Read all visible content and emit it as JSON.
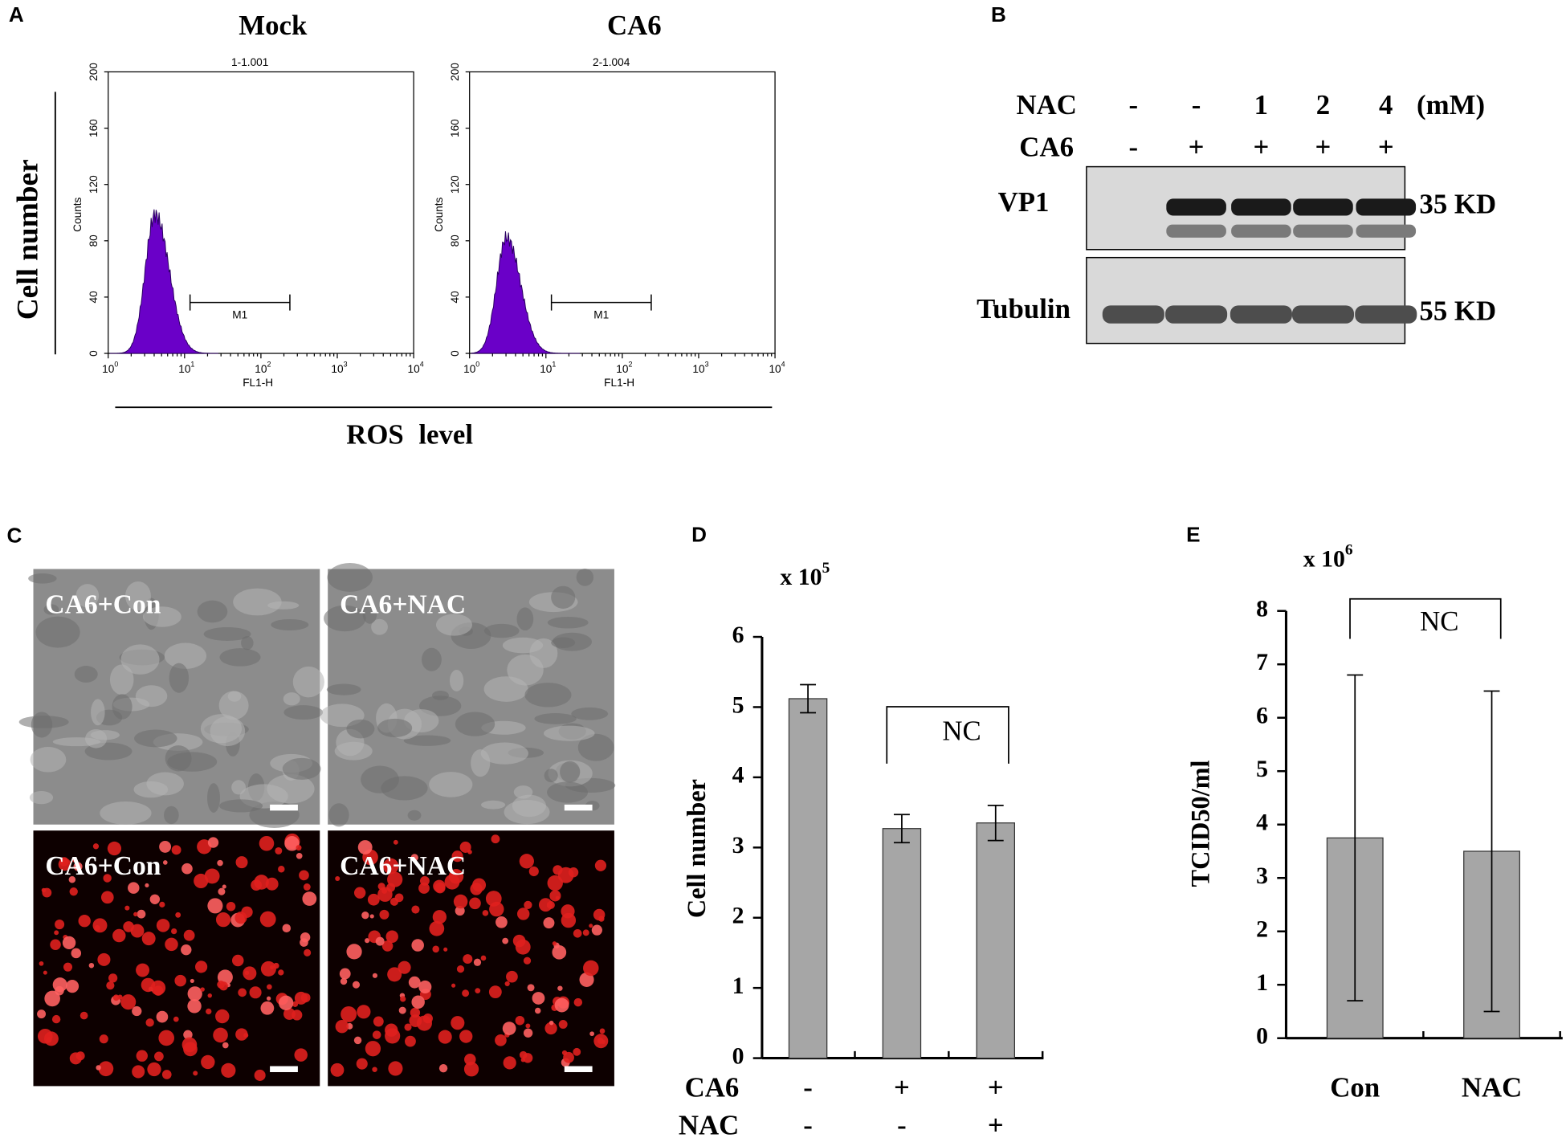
{
  "panel_a": {
    "label": "A",
    "ylabel": "Cell number",
    "xlabel": "ROS level",
    "plots": [
      {
        "title": "Mock",
        "subtitle": "1-1.001",
        "ylabel": "Counts",
        "xlabel": "FL1-H",
        "marker": "M1",
        "ylim": [
          0,
          200
        ],
        "yticks": [
          0,
          40,
          80,
          120,
          160,
          200
        ],
        "xticks": [
          {
            "base": "10",
            "exp": "0"
          },
          {
            "base": "10",
            "exp": "1"
          },
          {
            "base": "10",
            "exp": "2"
          },
          {
            "base": "10",
            "exp": "3"
          },
          {
            "base": "10",
            "exp": "4"
          }
        ]
      },
      {
        "title": "CA6",
        "subtitle": "2-1.004",
        "ylabel": "Counts",
        "xlabel": "FL1-H",
        "marker": "M1",
        "ylim": [
          0,
          200
        ],
        "yticks": [
          0,
          40,
          80,
          120,
          160,
          200
        ],
        "xticks": [
          {
            "base": "10",
            "exp": "0"
          },
          {
            "base": "10",
            "exp": "1"
          },
          {
            "base": "10",
            "exp": "2"
          },
          {
            "base": "10",
            "exp": "3"
          },
          {
            "base": "10",
            "exp": "4"
          }
        ]
      }
    ]
  },
  "panel_b": {
    "label": "B",
    "rows": [
      {
        "name": "NAC",
        "values": [
          "-",
          "-",
          "1",
          "2",
          "4"
        ],
        "unit": "(mM)"
      },
      {
        "name": "CA6",
        "values": [
          "-",
          "+",
          "+",
          "+",
          "+"
        ]
      }
    ],
    "blots": [
      {
        "name": "VP1",
        "size": "35 KD"
      },
      {
        "name": "Tubulin",
        "size": "55 KD"
      }
    ]
  },
  "panel_c": {
    "label": "C",
    "images": [
      "CA6+Con",
      "CA6+NAC",
      "CA6+Con",
      "CA6+NAC"
    ]
  },
  "chart_data": [
    {
      "type": "bar",
      "label": "D",
      "unit": {
        "text": "x 10",
        "exp": "5"
      },
      "ylabel": "Cell number",
      "values": [
        5.12,
        3.27,
        3.35
      ],
      "errors": [
        0.2,
        0.2,
        0.25
      ],
      "color": "#a6a6a6",
      "ylim": [
        0,
        6
      ],
      "yticks": [
        0,
        1,
        2,
        3,
        4,
        5,
        6
      ],
      "annotation": "NC",
      "rows": [
        {
          "name": "CA6",
          "values": [
            "-",
            "+",
            "+"
          ]
        },
        {
          "name": "NAC",
          "values": [
            "-",
            "-",
            "+"
          ]
        }
      ]
    },
    {
      "type": "bar",
      "label": "E",
      "unit": {
        "text": "x 10",
        "exp": "6"
      },
      "ylabel": "TCID50/ml",
      "categories": [
        "Con",
        "NAC"
      ],
      "values": [
        3.75,
        3.5
      ],
      "errors": [
        3.05,
        3.0
      ],
      "color": "#a6a6a6",
      "ylim": [
        0,
        8
      ],
      "yticks": [
        0,
        1,
        2,
        3,
        4,
        5,
        6,
        7,
        8
      ],
      "annotation": "NC"
    }
  ]
}
